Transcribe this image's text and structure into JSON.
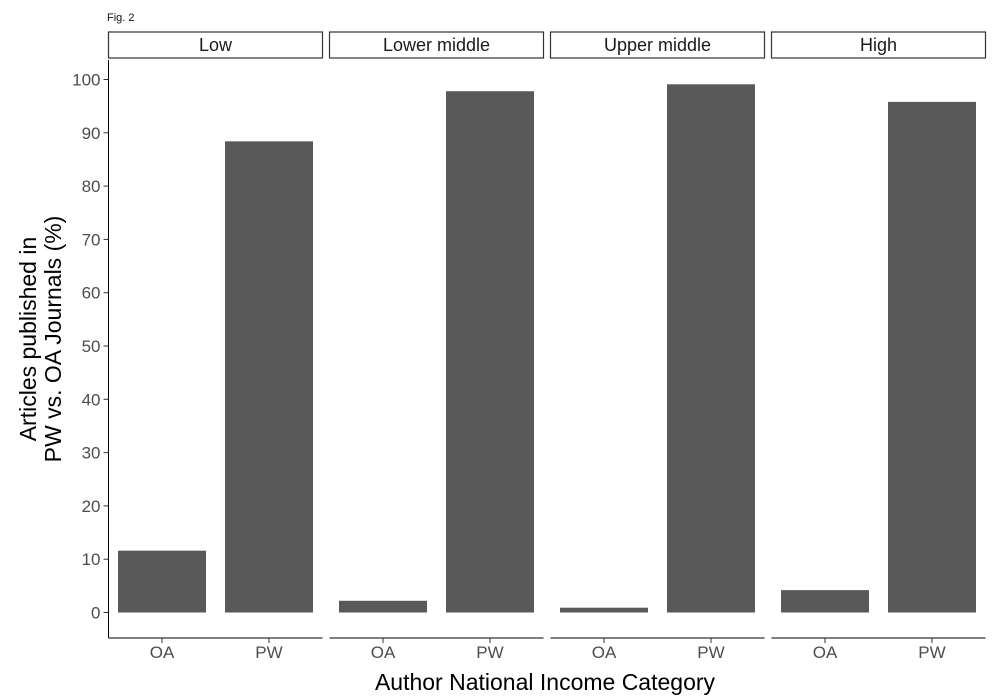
{
  "figure_label": "Fig. 2",
  "chart_data": {
    "type": "bar",
    "facet_layout": "row",
    "xlabel": "Author National Income Category",
    "ylabel_lines": [
      "Articles published in",
      "PW vs. OA Journals (%)"
    ],
    "ylim": [
      0,
      100
    ],
    "yticks": [
      0,
      10,
      20,
      30,
      40,
      50,
      60,
      70,
      80,
      90,
      100
    ],
    "grid": false,
    "bar_color": "#595959",
    "categories": [
      "OA",
      "PW"
    ],
    "facets": [
      {
        "name": "Low",
        "values": [
          11.6,
          88.4
        ]
      },
      {
        "name": "Lower middle",
        "values": [
          2.2,
          97.8
        ]
      },
      {
        "name": "Upper middle",
        "values": [
          0.9,
          99.1
        ]
      },
      {
        "name": "High",
        "values": [
          4.2,
          95.8
        ]
      }
    ]
  }
}
